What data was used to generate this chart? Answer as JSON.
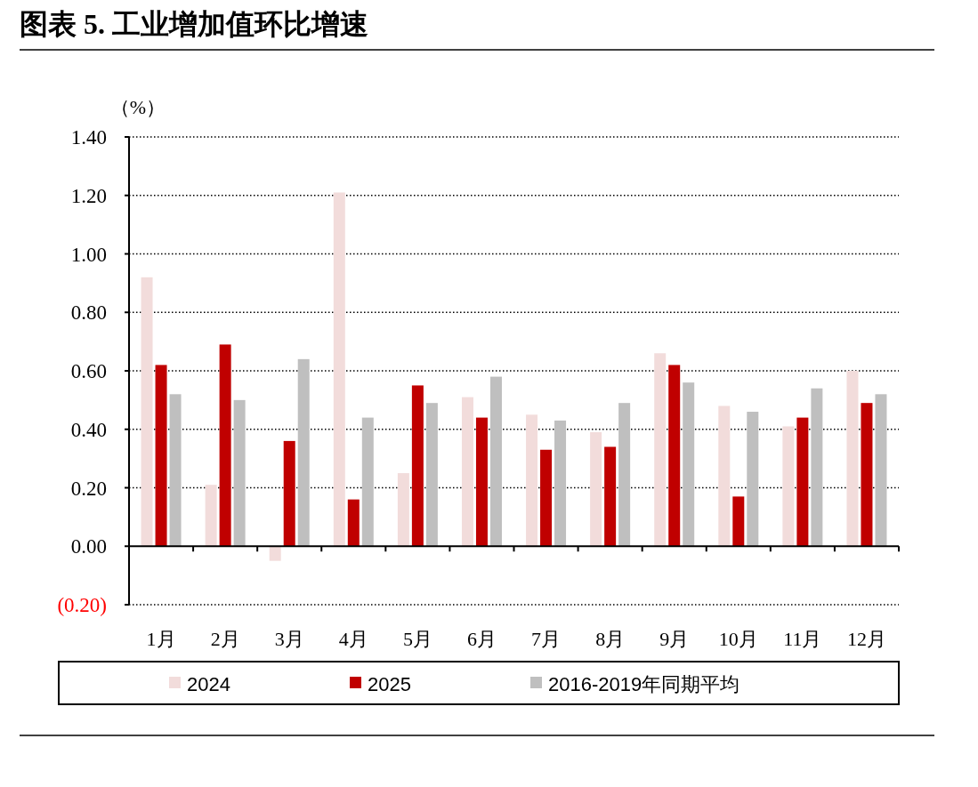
{
  "chart_data": {
    "type": "bar",
    "title": "图表 5. 工业增加值环比增速",
    "ylabel": "（%）",
    "categories": [
      "1月",
      "2月",
      "3月",
      "4月",
      "5月",
      "6月",
      "7月",
      "8月",
      "9月",
      "10月",
      "11月",
      "12月"
    ],
    "series": [
      {
        "name": "2024",
        "color": "#f2dcdb",
        "values": [
          0.92,
          0.21,
          -0.05,
          1.21,
          0.25,
          0.51,
          0.45,
          0.39,
          0.66,
          0.48,
          0.41,
          0.6
        ]
      },
      {
        "name": "2025",
        "color": "#c00000",
        "values": [
          0.62,
          0.69,
          0.36,
          0.16,
          0.55,
          0.44,
          0.33,
          0.34,
          0.62,
          0.17,
          0.44,
          0.49
        ]
      },
      {
        "name": "2016-2019年同期平均",
        "color": "#bfbfbf",
        "values": [
          0.52,
          0.5,
          0.64,
          0.44,
          0.49,
          0.58,
          0.43,
          0.49,
          0.56,
          0.46,
          0.54,
          0.52
        ]
      }
    ],
    "ylim": [
      -0.2,
      1.4
    ],
    "yticks": [
      {
        "value": -0.2,
        "label": "(0.20)"
      },
      {
        "value": 0,
        "label": "0.00"
      },
      {
        "value": 0.2,
        "label": "0.20"
      },
      {
        "value": 0.4,
        "label": "0.40"
      },
      {
        "value": 0.6,
        "label": "0.60"
      },
      {
        "value": 0.8,
        "label": "0.80"
      },
      {
        "value": 1.0,
        "label": "1.00"
      },
      {
        "value": 1.2,
        "label": "1.20"
      },
      {
        "value": 1.4,
        "label": "1.40"
      }
    ],
    "grid": "y",
    "legend": "bottom"
  }
}
